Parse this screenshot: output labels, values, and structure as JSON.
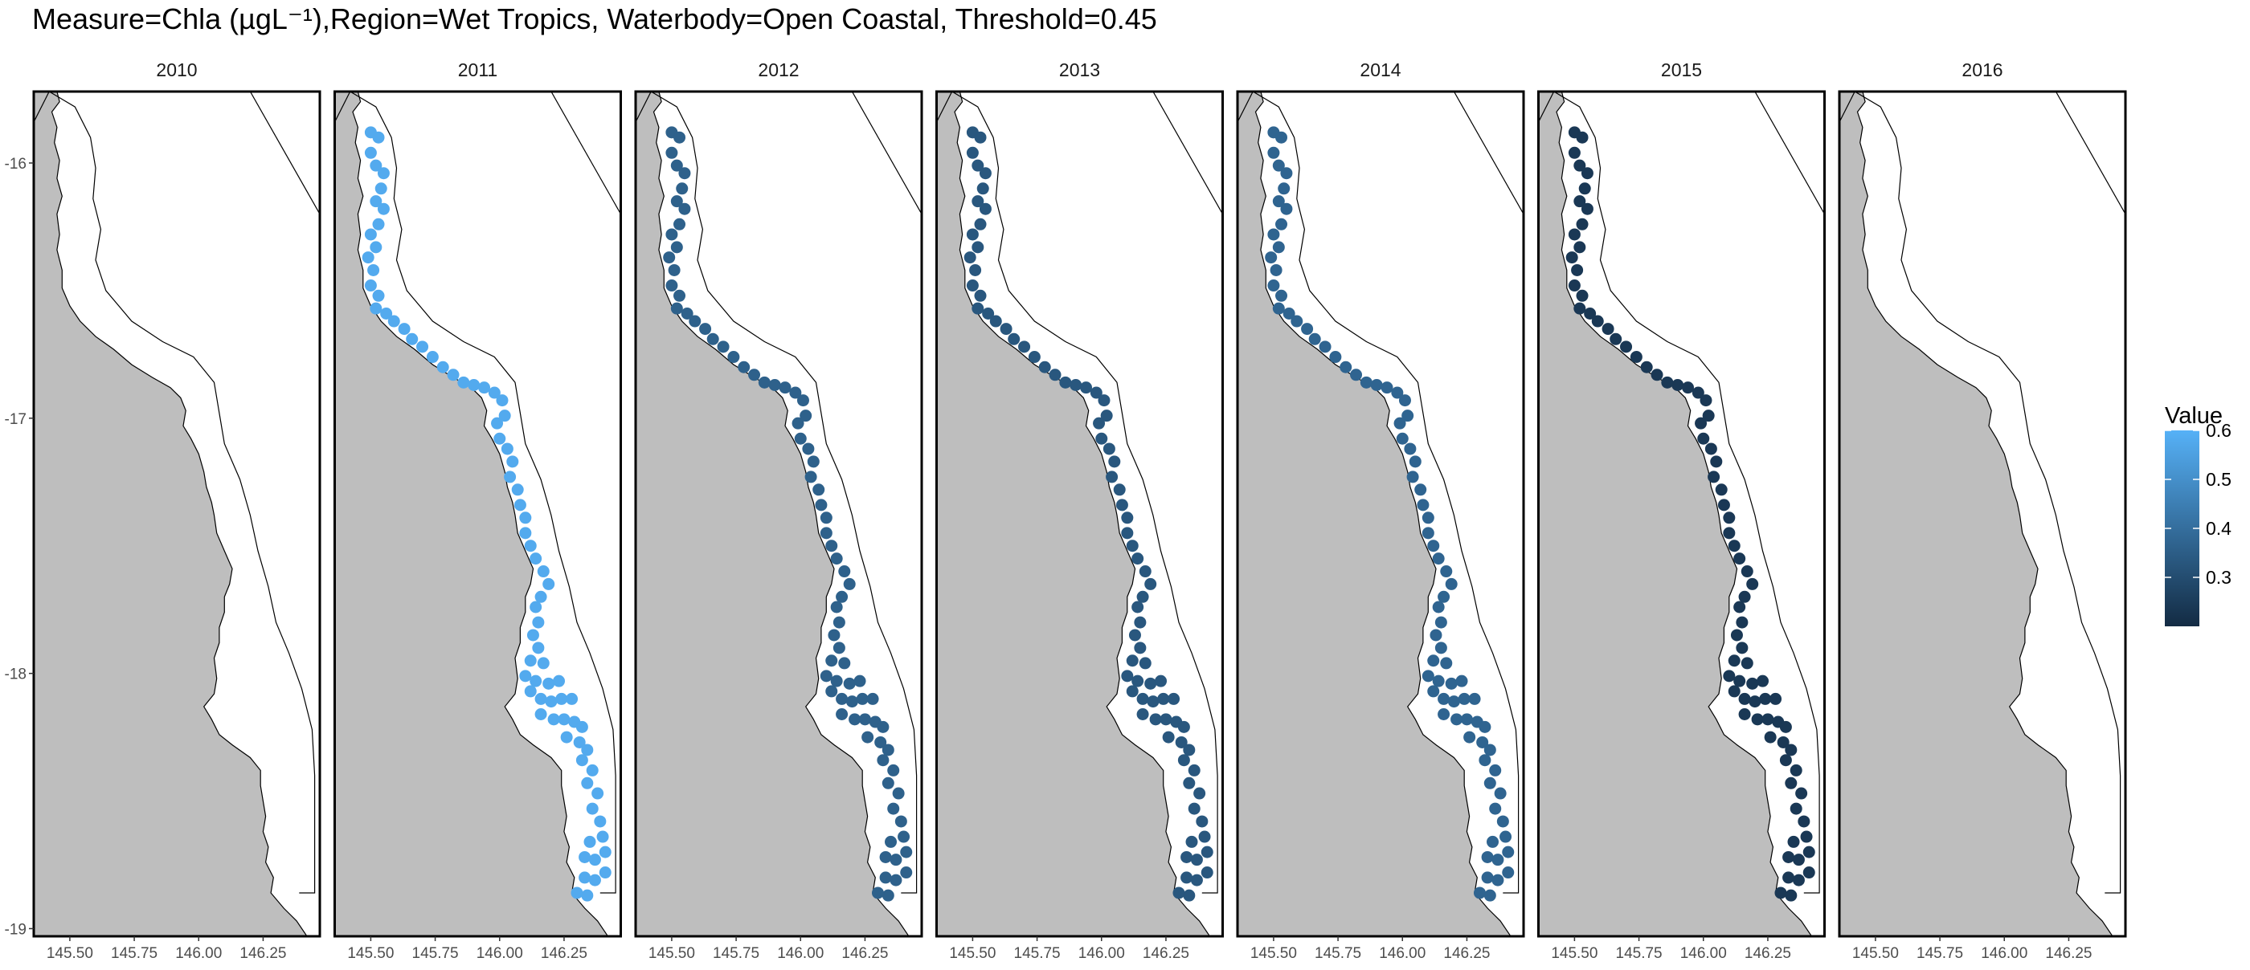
{
  "chart_data": {
    "type": "scatter",
    "title": "Measure=Chla (µgL⁻¹),Region=Wet Tropics, Waterbody=Open Coastal, Threshold=0.45",
    "xlabel": "",
    "ylabel": "",
    "xlim": [
      145.36,
      146.47
    ],
    "ylim": [
      -19.03,
      -15.72
    ],
    "x_ticks": [
      145.5,
      145.75,
      146.0,
      146.25
    ],
    "x_tick_labels": [
      "145.50",
      "145.75",
      "146.00",
      "146.25"
    ],
    "y_ticks": [
      -16,
      -17,
      -18,
      -19
    ],
    "y_tick_labels": [
      "-16",
      "-17",
      "-18",
      "-19"
    ],
    "grid": false,
    "facets": [
      "2010",
      "2011",
      "2012",
      "2013",
      "2014",
      "2015",
      "2016"
    ],
    "legend": {
      "title": "Value",
      "placement": "right",
      "range": [
        0.2,
        0.6
      ],
      "ticks": [
        0.3,
        0.4,
        0.5,
        0.6
      ],
      "tick_labels": [
        "0.3",
        "0.4",
        "0.5",
        "0.6"
      ],
      "color_low": "#132B43",
      "color_high": "#56B1F7"
    },
    "colors": {
      "land": "#bebebe",
      "sea": "#ffffff",
      "outline": "#000000",
      "panel_border": "#000000"
    },
    "series": [
      {
        "name": "2010",
        "value": null
      },
      {
        "name": "2011",
        "value": 0.58
      },
      {
        "name": "2012",
        "value": 0.36
      },
      {
        "name": "2013",
        "value": 0.33
      },
      {
        "name": "2014",
        "value": 0.37
      },
      {
        "name": "2015",
        "value": 0.24
      },
      {
        "name": "2016",
        "value": null
      }
    ],
    "points": [
      [
        145.5,
        -15.88
      ],
      [
        145.53,
        -15.9
      ],
      [
        145.5,
        -15.96
      ],
      [
        145.52,
        -16.01
      ],
      [
        145.55,
        -16.04
      ],
      [
        145.54,
        -16.1
      ],
      [
        145.52,
        -16.15
      ],
      [
        145.55,
        -16.18
      ],
      [
        145.53,
        -16.24
      ],
      [
        145.5,
        -16.28
      ],
      [
        145.52,
        -16.33
      ],
      [
        145.49,
        -16.37
      ],
      [
        145.51,
        -16.42
      ],
      [
        145.5,
        -16.48
      ],
      [
        145.53,
        -16.52
      ],
      [
        145.52,
        -16.57
      ],
      [
        145.56,
        -16.59
      ],
      [
        145.59,
        -16.62
      ],
      [
        145.63,
        -16.65
      ],
      [
        145.66,
        -16.69
      ],
      [
        145.7,
        -16.72
      ],
      [
        145.74,
        -16.76
      ],
      [
        145.78,
        -16.8
      ],
      [
        145.82,
        -16.83
      ],
      [
        145.86,
        -16.86
      ],
      [
        145.9,
        -16.87
      ],
      [
        145.94,
        -16.88
      ],
      [
        145.98,
        -16.9
      ],
      [
        146.01,
        -16.93
      ],
      [
        146.02,
        -16.99
      ],
      [
        145.99,
        -17.02
      ],
      [
        146.0,
        -17.08
      ],
      [
        146.03,
        -17.12
      ],
      [
        146.05,
        -17.17
      ],
      [
        146.04,
        -17.23
      ],
      [
        146.07,
        -17.28
      ],
      [
        146.08,
        -17.34
      ],
      [
        146.1,
        -17.39
      ],
      [
        146.1,
        -17.45
      ],
      [
        146.12,
        -17.5
      ],
      [
        146.14,
        -17.55
      ],
      [
        146.17,
        -17.6
      ],
      [
        146.19,
        -17.65
      ],
      [
        146.16,
        -17.7
      ],
      [
        146.14,
        -17.74
      ],
      [
        146.15,
        -17.8
      ],
      [
        146.13,
        -17.85
      ],
      [
        146.15,
        -17.9
      ],
      [
        146.12,
        -17.95
      ],
      [
        146.17,
        -17.96
      ],
      [
        146.1,
        -18.01
      ],
      [
        146.14,
        -18.03
      ],
      [
        146.19,
        -18.04
      ],
      [
        146.23,
        -18.03
      ],
      [
        146.12,
        -18.07
      ],
      [
        146.16,
        -18.1
      ],
      [
        146.2,
        -18.11
      ],
      [
        146.24,
        -18.1
      ],
      [
        146.28,
        -18.1
      ],
      [
        146.16,
        -18.16
      ],
      [
        146.21,
        -18.18
      ],
      [
        146.25,
        -18.18
      ],
      [
        146.29,
        -18.19
      ],
      [
        146.32,
        -18.21
      ],
      [
        146.26,
        -18.25
      ],
      [
        146.31,
        -18.27
      ],
      [
        146.34,
        -18.3
      ],
      [
        146.32,
        -18.34
      ],
      [
        146.36,
        -18.38
      ],
      [
        146.34,
        -18.43
      ],
      [
        146.38,
        -18.47
      ],
      [
        146.36,
        -18.53
      ],
      [
        146.39,
        -18.58
      ],
      [
        146.4,
        -18.64
      ],
      [
        146.35,
        -18.66
      ],
      [
        146.33,
        -18.72
      ],
      [
        146.37,
        -18.73
      ],
      [
        146.41,
        -18.7
      ],
      [
        146.33,
        -18.8
      ],
      [
        146.37,
        -18.81
      ],
      [
        146.41,
        -18.78
      ],
      [
        146.3,
        -18.86
      ],
      [
        146.34,
        -18.87
      ]
    ]
  }
}
